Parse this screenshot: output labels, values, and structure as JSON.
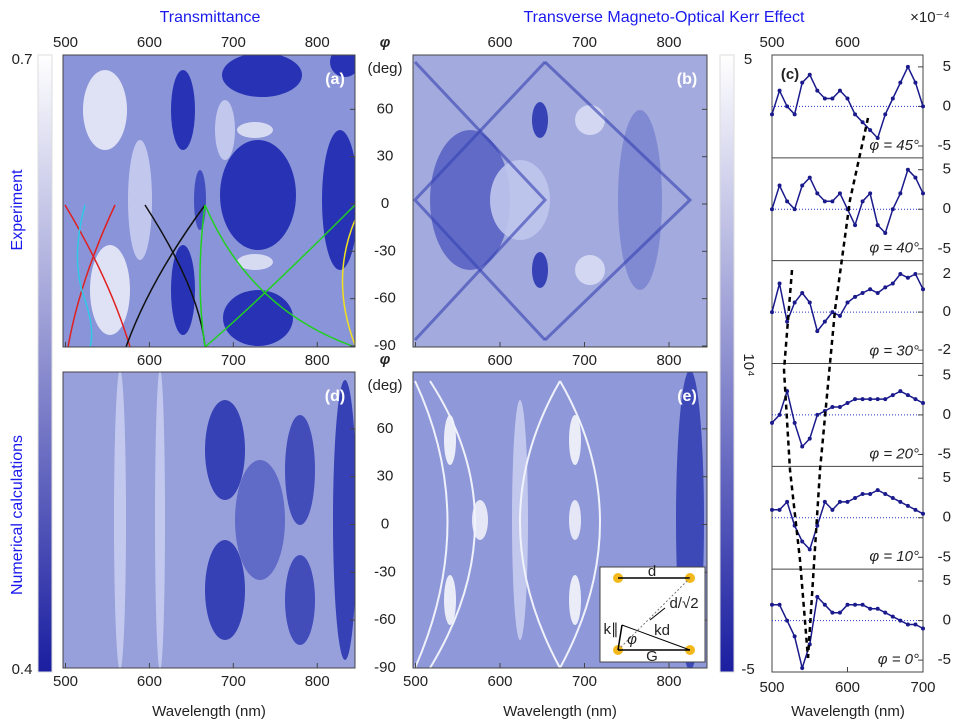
{
  "row_labels": [
    "Experiment",
    "Numerical calculations"
  ],
  "chart_data": [
    {
      "type": "heatmap",
      "title": "Transmittance",
      "panel": "(a)",
      "xlim": [
        497,
        845
      ],
      "xticks": [
        500,
        600,
        700,
        800
      ],
      "ylabel": "φ",
      "yunit": "(deg)",
      "ylim": [
        -90,
        90
      ],
      "yticks": [
        -90,
        -60,
        -30,
        0,
        30,
        60
      ],
      "zlim": [
        0.4,
        0.7
      ],
      "zticks": [
        0.4,
        0.7
      ],
      "colormap": [
        "#1a1ea0",
        "#ffffff"
      ]
    },
    {
      "type": "heatmap",
      "title": "Transverse Magneto-Optical Kerr Effect",
      "panel": "(b)",
      "xlim": [
        497,
        845
      ],
      "xticks": [
        500,
        600,
        700,
        800
      ],
      "ylim": [
        -90,
        90
      ],
      "yticks": [
        -90,
        -60,
        -30,
        0,
        30,
        60
      ],
      "zlim": [
        -5,
        5
      ],
      "zticks": [
        -5,
        5
      ],
      "zlabel": "10⁴",
      "colormap": [
        "#1a1ea0",
        "#ffffff"
      ]
    },
    {
      "type": "heatmap",
      "panel": "(d)",
      "xlabel": "Wavelength (nm)",
      "xlim": [
        497,
        845
      ],
      "xticks": [
        500,
        600,
        700,
        800
      ],
      "ylabel": "φ",
      "yunit": "(deg)",
      "ylim": [
        -90,
        90
      ],
      "yticks": [
        -90,
        -60,
        -30,
        0,
        30,
        60
      ]
    },
    {
      "type": "heatmap",
      "panel": "(e)",
      "xlabel": "Wavelength (nm)",
      "xlim": [
        497,
        845
      ],
      "xticks": [
        500,
        600,
        700,
        800
      ],
      "ylim": [
        -90,
        90
      ],
      "yticks": [
        -90,
        -60,
        -30,
        0,
        30,
        60
      ],
      "inset": {
        "d": "d",
        "diag": "d/√2",
        "kd": "kd",
        "kpar": "k∥",
        "phi": "φ",
        "g": "G"
      }
    },
    {
      "type": "line",
      "panel": "(c)",
      "multiplier": "×10⁻⁴",
      "xlabel": "Wavelength (nm)",
      "xlim": [
        500,
        700
      ],
      "xticks": [
        500,
        600,
        700
      ],
      "color": "#1a1a8c",
      "x": [
        500,
        510,
        520,
        530,
        540,
        550,
        560,
        570,
        580,
        590,
        600,
        610,
        620,
        630,
        640,
        650,
        660,
        670,
        680,
        690,
        700
      ],
      "series": [
        {
          "name": "φ = 45°",
          "ylim": [
            -6.5,
            6.5
          ],
          "yticks": [
            -5,
            0,
            5
          ],
          "values": [
            -1,
            2,
            0,
            -1,
            3,
            4,
            2,
            1,
            1,
            2,
            1,
            -1,
            -2,
            -3,
            -4,
            -1,
            1,
            3,
            5,
            3,
            0
          ]
        },
        {
          "name": "φ = 40°",
          "ylim": [
            -6.5,
            6.5
          ],
          "yticks": [
            -5,
            0,
            5
          ],
          "values": [
            0,
            3,
            1,
            0,
            3,
            4,
            2,
            1,
            1,
            2,
            0,
            -2,
            1,
            2,
            -2,
            -3,
            0,
            2,
            5,
            4,
            2
          ]
        },
        {
          "name": "φ = 30°",
          "ylim": [
            -2.7,
            2.7
          ],
          "yticks": [
            -2,
            0,
            2
          ],
          "values": [
            0,
            1.5,
            -0.5,
            0.5,
            1,
            0.5,
            -1,
            -0.5,
            0,
            -0.2,
            0.5,
            0.8,
            1,
            1.2,
            1,
            1.3,
            1.5,
            2,
            1.8,
            2,
            1.2
          ]
        },
        {
          "name": "φ = 20°",
          "ylim": [
            -6.5,
            6.5
          ],
          "yticks": [
            -5,
            0,
            5
          ],
          "values": [
            -1,
            0,
            3,
            -1,
            -4,
            -3,
            0,
            0.5,
            1,
            1,
            1.5,
            2,
            2,
            2,
            2,
            2,
            2.5,
            3,
            2.5,
            2,
            1.5
          ]
        },
        {
          "name": "φ = 10°",
          "ylim": [
            -6.5,
            6.5
          ],
          "yticks": [
            -5,
            0,
            5
          ],
          "values": [
            1,
            1,
            2,
            -1,
            -3,
            -4,
            -1,
            2,
            1,
            2,
            2,
            2.5,
            3,
            3,
            3.5,
            3,
            2.5,
            2,
            1.5,
            1,
            0.5
          ]
        },
        {
          "name": "φ = 0°",
          "ylim": [
            -6.5,
            6.5
          ],
          "yticks": [
            -5,
            0,
            5
          ],
          "values": [
            2,
            2,
            0,
            -2,
            -6,
            -3,
            3,
            2,
            1,
            1,
            2,
            2,
            2,
            1.5,
            1.5,
            1,
            0.5,
            0,
            -0.5,
            -0.5,
            -1
          ]
        }
      ]
    }
  ]
}
